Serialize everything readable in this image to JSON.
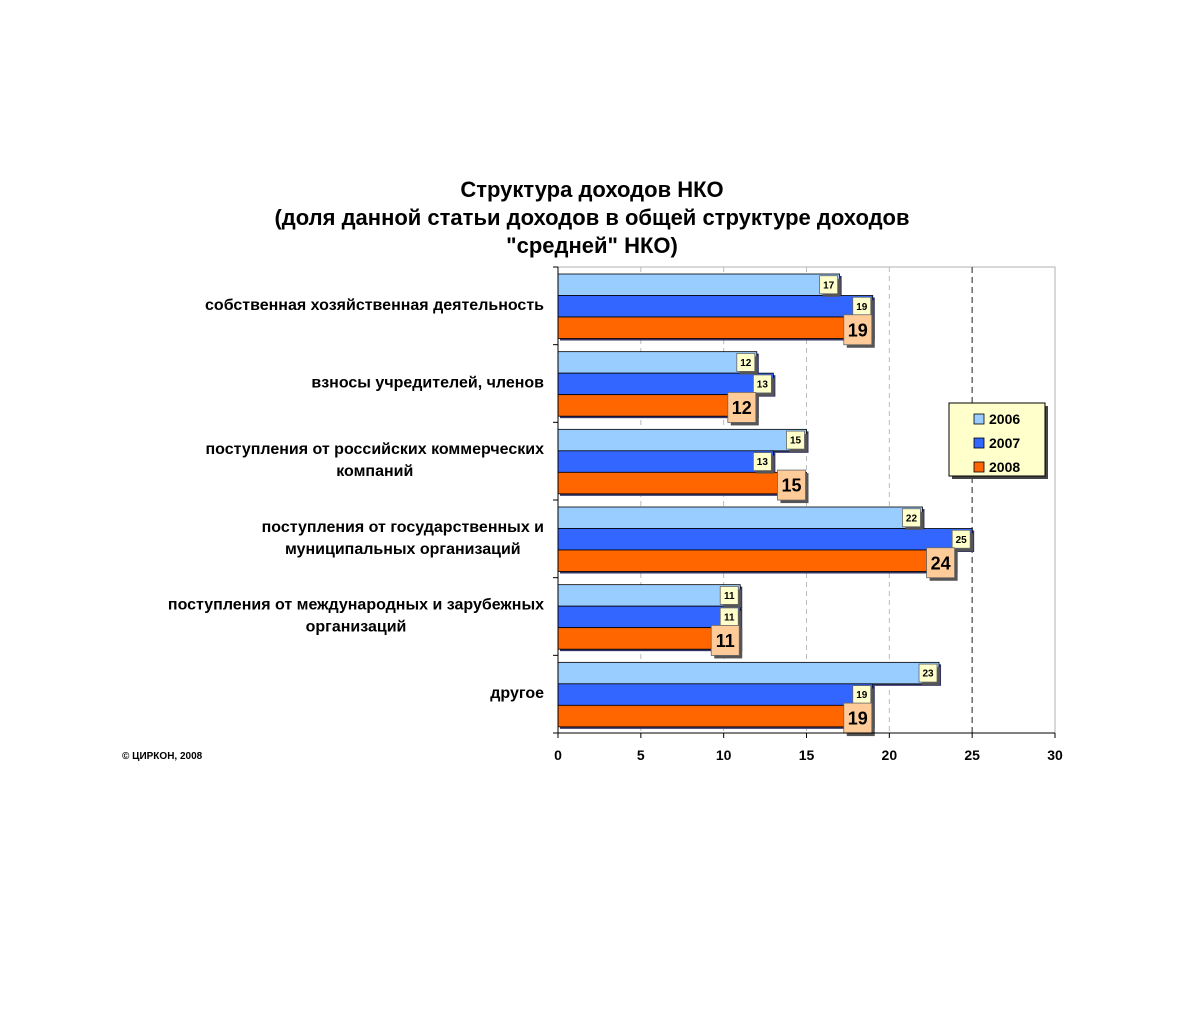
{
  "colors": {
    "s2006": "#99ccff",
    "s2007": "#3366ff",
    "s2008": "#ff6600",
    "label_small_bg": "#ffffcc",
    "label_big_bg": "#ffcc99",
    "legend_bg": "#ffffcc"
  },
  "copyright": "© ЦИРКОН, 2008",
  "chart_data": {
    "type": "bar",
    "orientation": "horizontal",
    "title": [
      "Структура доходов НКО",
      "(доля данной статьи доходов в общей структуре доходов",
      "\"средней\" НКО)"
    ],
    "categories": [
      [
        "собственная хозяйственная деятельность"
      ],
      [
        "взносы учредителей, членов"
      ],
      [
        "поступления от российских коммерческих",
        "компаний"
      ],
      [
        "поступления от государственных и",
        "муниципальных организаций"
      ],
      [
        "поступления от международных и зарубежных",
        "организаций"
      ],
      [
        "другое"
      ]
    ],
    "series": [
      {
        "name": "2006",
        "color": "#99ccff",
        "values": [
          17,
          12,
          15,
          22,
          11,
          23
        ]
      },
      {
        "name": "2007",
        "color": "#3366ff",
        "values": [
          19,
          13,
          13,
          25,
          11,
          19
        ]
      },
      {
        "name": "2008",
        "color": "#ff6600",
        "values": [
          19,
          12,
          15,
          24,
          11,
          19
        ]
      }
    ],
    "xlim": [
      0,
      30
    ],
    "xticks": [
      "0",
      "5",
      "10",
      "15",
      "20",
      "25",
      "30"
    ],
    "grid": "vertical dashed",
    "legend": "right"
  }
}
